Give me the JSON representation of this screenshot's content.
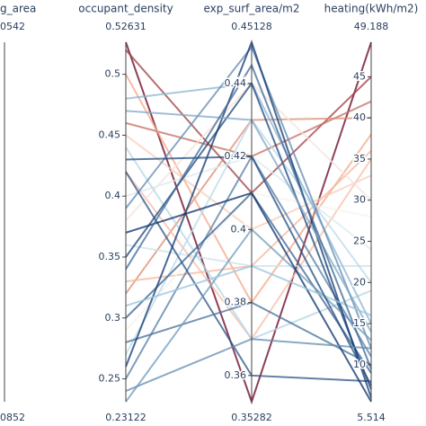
{
  "chart_data": {
    "type": "parallel",
    "colorscale": [
      "#08306b",
      "#9ecae1",
      "#f7f7f7",
      "#f4a582",
      "#67001f"
    ],
    "color_axis": 3,
    "axes": [
      {
        "label": "g_area",
        "top_label": "0542",
        "bottom_label": "0852"
      },
      {
        "label": "occupant_density",
        "ylim": [
          0.23122,
          0.52631
        ],
        "yticks": [
          0.25,
          0.3,
          0.35,
          0.4,
          0.45,
          0.5
        ]
      },
      {
        "label": "exp_surf_area/m2",
        "ylim": [
          0.35282,
          0.45128
        ],
        "yticks": [
          0.36,
          0.38,
          0.4,
          0.42,
          0.44
        ]
      },
      {
        "label": "heating(kWh/m2)",
        "ylim": [
          5.514,
          49.188
        ],
        "yticks": [
          10,
          15,
          20,
          25,
          30,
          35,
          40,
          45
        ]
      }
    ],
    "series": [
      {
        "values": [
          0.52631,
          0.35282,
          49.188
        ]
      },
      {
        "values": [
          0.52,
          0.41,
          45
        ]
      },
      {
        "values": [
          0.46,
          0.42,
          42
        ]
      },
      {
        "values": [
          0.32,
          0.43,
          40
        ]
      },
      {
        "values": [
          0.5,
          0.38,
          38
        ]
      },
      {
        "values": [
          0.33,
          0.39,
          36
        ]
      },
      {
        "values": [
          0.42,
          0.37,
          35
        ]
      },
      {
        "values": [
          0.45,
          0.4,
          33
        ]
      },
      {
        "values": [
          0.38,
          0.44,
          30
        ]
      },
      {
        "values": [
          0.29,
          0.41,
          28
        ]
      },
      {
        "values": [
          0.4,
          0.42,
          24
        ]
      },
      {
        "values": [
          0.36,
          0.39,
          22
        ]
      },
      {
        "values": [
          0.27,
          0.43,
          20
        ]
      },
      {
        "values": [
          0.44,
          0.37,
          19
        ]
      },
      {
        "values": [
          0.48,
          0.44,
          15
        ]
      },
      {
        "values": [
          0.39,
          0.45,
          12
        ]
      },
      {
        "values": [
          0.25,
          0.42,
          11
        ]
      },
      {
        "values": [
          0.3,
          0.41,
          9
        ]
      },
      {
        "values": [
          0.42,
          0.36,
          8
        ]
      },
      {
        "values": [
          0.35,
          0.44,
          7
        ]
      },
      {
        "values": [
          0.28,
          0.38,
          10
        ]
      },
      {
        "values": [
          0.23122,
          0.4,
          13
        ]
      },
      {
        "values": [
          0.26,
          0.45128,
          6
        ]
      },
      {
        "values": [
          0.47,
          0.43,
          14
        ]
      },
      {
        "values": [
          0.37,
          0.41,
          5.514
        ]
      },
      {
        "values": [
          0.31,
          0.39,
          16
        ]
      },
      {
        "values": [
          0.34,
          0.445,
          9.5
        ]
      },
      {
        "values": [
          0.24,
          0.37,
          12
        ]
      },
      {
        "values": [
          0.43,
          0.42,
          7.5
        ]
      }
    ]
  }
}
